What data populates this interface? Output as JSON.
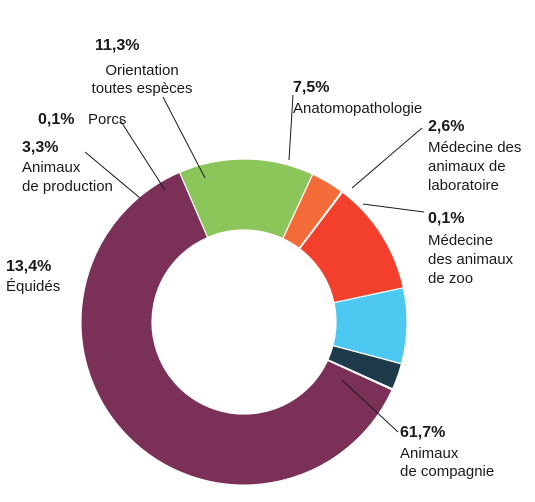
{
  "chart_data": {
    "type": "pie",
    "donut": true,
    "legend": "none",
    "slices": [
      {
        "name": "Animaux de compagnie",
        "pct_label": "61,7%",
        "label_lines": [
          "Animaux",
          "de compagnie"
        ],
        "value": 61.7,
        "color": "#7b3058"
      },
      {
        "name": "Équidés",
        "pct_label": "13,4%",
        "label_lines": [
          "Équidés"
        ],
        "value": 13.4,
        "color": "#8cc65a"
      },
      {
        "name": "Animaux de production",
        "pct_label": "3,3%",
        "label_lines": [
          "Animaux",
          "de production"
        ],
        "value": 3.3,
        "color": "#f26b38"
      },
      {
        "name": "Porcs",
        "pct_label": "0,1%",
        "label_lines": [
          "Porcs"
        ],
        "value": 0.1,
        "color": "#f7a23b"
      },
      {
        "name": "Orientation toutes espèces",
        "pct_label": "11,3%",
        "label_lines": [
          "Orientation",
          "toutes espèces"
        ],
        "value": 11.3,
        "color": "#f2402d"
      },
      {
        "name": "Anatomopathologie",
        "pct_label": "7,5%",
        "label_lines": [
          "Anatomopathologie"
        ],
        "value": 7.5,
        "color": "#4dc8f0"
      },
      {
        "name": "Médecine des animaux de laboratoire",
        "pct_label": "2,6%",
        "label_lines": [
          "Médecine des",
          "animaux de",
          "laboratoire"
        ],
        "value": 2.6,
        "color": "#1c3a4a"
      },
      {
        "name": "Médecine des animaux de zoo",
        "pct_label": "0,1%",
        "label_lines": [
          "Médecine",
          "des animaux",
          "de zoo"
        ],
        "value": 0.1,
        "color": "#8a8a8a"
      }
    ]
  }
}
